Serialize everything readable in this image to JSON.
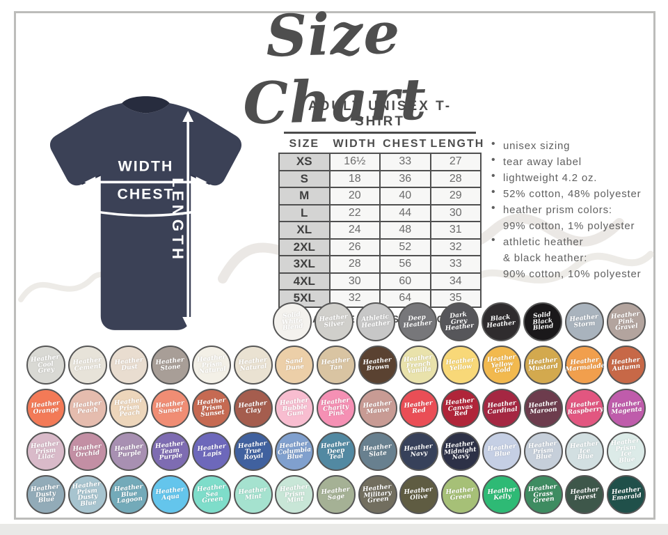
{
  "title": "Size Chart",
  "tshirt": {
    "width_label": "WIDTH",
    "chest_label": "CHEST",
    "length_label": "LENGTH",
    "color": "#3b4156"
  },
  "table": {
    "title": "ADULT UNISEX T-SHIRT",
    "headers": [
      "SIZE",
      "WIDTH",
      "CHEST",
      "LENGTH"
    ],
    "rows": [
      [
        "XS",
        "16½",
        "33",
        "27"
      ],
      [
        "S",
        "18",
        "36",
        "28"
      ],
      [
        "M",
        "20",
        "40",
        "29"
      ],
      [
        "L",
        "22",
        "44",
        "30"
      ],
      [
        "XL",
        "24",
        "48",
        "31"
      ],
      [
        "2XL",
        "26",
        "52",
        "32"
      ],
      [
        "3XL",
        "28",
        "56",
        "33"
      ],
      [
        "4XL",
        "30",
        "60",
        "34"
      ],
      [
        "5XL",
        "32",
        "64",
        "35"
      ]
    ],
    "note": "*MEASUREMENTS IN INCHES"
  },
  "features": [
    [
      "unisex sizing"
    ],
    [
      "tear away label"
    ],
    [
      "lightweight 4.2 oz."
    ],
    [
      "52% cotton, 48% polyester"
    ],
    [
      "heather prism colors:",
      "99% cotton, 1% polyester"
    ],
    [
      "athletic heather",
      "& black heather:",
      "90% cotton, 10% polyester"
    ]
  ],
  "swatch_rows": [
    [
      {
        "name": "Solid White Blend",
        "color": "#f4f2ee"
      },
      {
        "name": "Heather Silver",
        "color": "#d0cfcb"
      },
      {
        "name": "Athletic Heather",
        "color": "#c7c7c7"
      },
      {
        "name": "Deep Heather",
        "color": "#77777a"
      },
      {
        "name": "Dark Grey Heather",
        "color": "#56565a"
      },
      {
        "name": "Black Heather",
        "color": "#2f2c2e"
      },
      {
        "name": "Solid Black Blend",
        "color": "#1a181a"
      },
      {
        "name": "Heather Storm",
        "color": "#a9b3bd"
      },
      {
        "name": "Heather Pink Gravel",
        "color": "#b3a49e"
      }
    ],
    [
      {
        "name": "Heather Cool Grey",
        "color": "#d9d9d4"
      },
      {
        "name": "Heather Cement",
        "color": "#e7e3d9"
      },
      {
        "name": "Heather Dust",
        "color": "#e9ddd0"
      },
      {
        "name": "Heather Stone",
        "color": "#a89e97"
      },
      {
        "name": "Heather Prism Natural",
        "color": "#f3f0e7"
      },
      {
        "name": "Heather Natural",
        "color": "#eae2d2"
      },
      {
        "name": "Sand Dune",
        "color": "#eccfa8"
      },
      {
        "name": "Heather Tan",
        "color": "#d9c4a2"
      },
      {
        "name": "Heather Brown",
        "color": "#5a4231"
      },
      {
        "name": "Heather French Vanilla",
        "color": "#e9e2ab"
      },
      {
        "name": "Heather Yellow",
        "color": "#f8d878"
      },
      {
        "name": "Heather Yellow Gold",
        "color": "#f2b94e"
      },
      {
        "name": "Heather Mustard",
        "color": "#d3a94e"
      },
      {
        "name": "Heather Marmalade",
        "color": "#f19f4d"
      },
      {
        "name": "Heather Autumn",
        "color": "#c76847"
      }
    ],
    [
      {
        "name": "Heather Orange",
        "color": "#f37a57"
      },
      {
        "name": "Heather Peach",
        "color": "#e5bcae"
      },
      {
        "name": "Heather Prism Peach",
        "color": "#edd6bb"
      },
      {
        "name": "Heather Sunset",
        "color": "#f08d74"
      },
      {
        "name": "Heather Prism Sunset",
        "color": "#c66a52"
      },
      {
        "name": "Heather Clay",
        "color": "#a55d4e"
      },
      {
        "name": "Heather Bubble Gum",
        "color": "#f8bdd0"
      },
      {
        "name": "Heather Charity Pink",
        "color": "#f590b4"
      },
      {
        "name": "Heather Mauve",
        "color": "#c89b94"
      },
      {
        "name": "Heather Red",
        "color": "#ea4e56"
      },
      {
        "name": "Heather Canvas Red",
        "color": "#b02539"
      },
      {
        "name": "Heather Cardinal",
        "color": "#a52742"
      },
      {
        "name": "Heather Maroon",
        "color": "#6d3c4d"
      },
      {
        "name": "Heather Raspberry",
        "color": "#e25680"
      },
      {
        "name": "Heather Magenta",
        "color": "#bf5cab"
      }
    ],
    [
      {
        "name": "Heather Prism Lilac",
        "color": "#d9bac9"
      },
      {
        "name": "Heather Orchid",
        "color": "#c38fa4"
      },
      {
        "name": "Heather Purple",
        "color": "#a890b2"
      },
      {
        "name": "Heather Team Purple",
        "color": "#7e6cb2"
      },
      {
        "name": "Heather Lapis",
        "color": "#6d68bb"
      },
      {
        "name": "Heather True Royal",
        "color": "#40619f"
      },
      {
        "name": "Heather Columbia Blue",
        "color": "#80a0ce"
      },
      {
        "name": "Heather Deep Teal",
        "color": "#5289a2"
      },
      {
        "name": "Heather Slate",
        "color": "#68808f"
      },
      {
        "name": "Heather Navy",
        "color": "#37415a"
      },
      {
        "name": "Heather Midnight Navy",
        "color": "#2d3147"
      },
      {
        "name": "Heather Blue",
        "color": "#c5cfe4"
      },
      {
        "name": "Heather Prism Blue",
        "color": "#c6cfda"
      },
      {
        "name": "Heather Ice Blue",
        "color": "#d2dfe1"
      },
      {
        "name": "Heather Prism Ice Blue",
        "color": "#dcebe8"
      }
    ],
    [
      {
        "name": "Heather Dusty Blue",
        "color": "#92abb8"
      },
      {
        "name": "Heather Prism Dusty Blue",
        "color": "#a7c4cf"
      },
      {
        "name": "Heather Blue Lagoon",
        "color": "#73aab9"
      },
      {
        "name": "Heather Aqua",
        "color": "#64c5ec"
      },
      {
        "name": "Heather Sea Green",
        "color": "#7eddca"
      },
      {
        "name": "Heather Mint",
        "color": "#a5e2cf"
      },
      {
        "name": "Heather Prism Mint",
        "color": "#c8e6d7"
      },
      {
        "name": "Heather Sage",
        "color": "#a5b195"
      },
      {
        "name": "Heather Military Green",
        "color": "#726e5f"
      },
      {
        "name": "Heather Olive",
        "color": "#5f5c42"
      },
      {
        "name": "Heather Green",
        "color": "#a6c077"
      },
      {
        "name": "Heather Kelly",
        "color": "#2eba75"
      },
      {
        "name": "Heather Grass Green",
        "color": "#3e8c61"
      },
      {
        "name": "Heather Forest",
        "color": "#3e574a"
      },
      {
        "name": "Heather Emerald",
        "color": "#20504a"
      }
    ]
  ]
}
